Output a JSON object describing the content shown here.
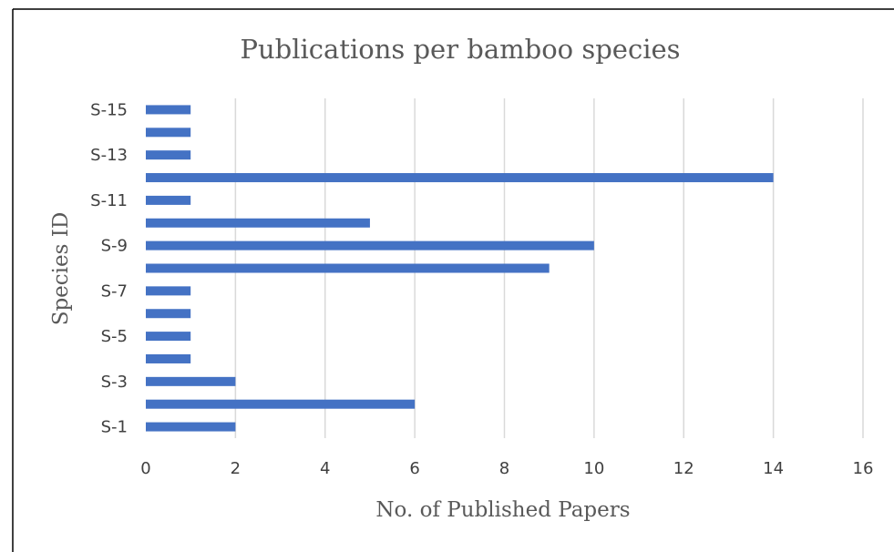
{
  "chart_data": {
    "type": "bar",
    "orientation": "horizontal",
    "title": "Publications per bamboo species",
    "xlabel": "No. of Published Papers",
    "ylabel": "Species ID",
    "categories": [
      "S-1",
      "S-2",
      "S-3",
      "S-4",
      "S-5",
      "S-6",
      "S-7",
      "S-8",
      "S-9",
      "S-10",
      "S-11",
      "S-12",
      "S-13",
      "S-14",
      "S-15"
    ],
    "visible_y_tick_labels": [
      "S-1",
      "S-3",
      "S-5",
      "S-7",
      "S-9",
      "S-11",
      "S-13",
      "S-15"
    ],
    "values": [
      2,
      6,
      2,
      1,
      1,
      1,
      1,
      9,
      10,
      5,
      1,
      14,
      1,
      1,
      1
    ],
    "xlim": [
      0,
      16
    ],
    "x_ticks": [
      0,
      2,
      4,
      6,
      8,
      10,
      12,
      14,
      16
    ],
    "grid": "vertical",
    "legend": "none",
    "bar_color": "#4472c4",
    "grid_color": "#d9d9d9"
  }
}
